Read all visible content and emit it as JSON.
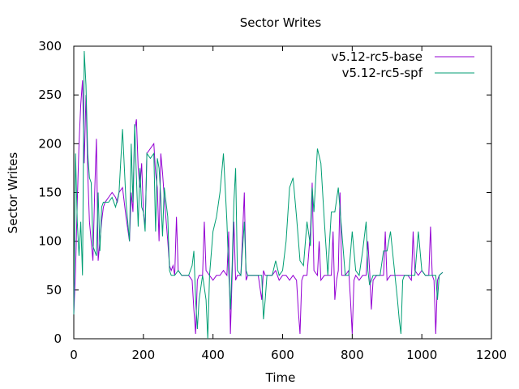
{
  "chart_data": {
    "type": "line",
    "title": "Sector Writes",
    "xlabel": "Time",
    "ylabel": "Sector Writes",
    "xlim": [
      0,
      1200
    ],
    "ylim": [
      0,
      300
    ],
    "x_ticks": [
      "0",
      "200",
      "400",
      "600",
      "800",
      "1000",
      "1200"
    ],
    "y_ticks": [
      "0",
      "50",
      "100",
      "150",
      "200",
      "250",
      "300"
    ],
    "grid": false,
    "legend_position": "top-right",
    "series": [
      {
        "name": "v5.12-rc5-base",
        "color": "#9400d3",
        "points": [
          [
            0,
            25
          ],
          [
            5,
            70
          ],
          [
            10,
            140
          ],
          [
            15,
            200
          ],
          [
            20,
            240
          ],
          [
            25,
            265
          ],
          [
            30,
            180
          ],
          [
            35,
            250
          ],
          [
            40,
            170
          ],
          [
            45,
            120
          ],
          [
            50,
            100
          ],
          [
            55,
            80
          ],
          [
            60,
            150
          ],
          [
            65,
            205
          ],
          [
            70,
            80
          ],
          [
            75,
            100
          ],
          [
            80,
            120
          ],
          [
            85,
            135
          ],
          [
            90,
            140
          ],
          [
            100,
            145
          ],
          [
            110,
            150
          ],
          [
            120,
            145
          ],
          [
            125,
            140
          ],
          [
            130,
            150
          ],
          [
            140,
            155
          ],
          [
            150,
            125
          ],
          [
            160,
            100
          ],
          [
            165,
            150
          ],
          [
            170,
            130
          ],
          [
            175,
            215
          ],
          [
            180,
            225
          ],
          [
            185,
            175
          ],
          [
            190,
            155
          ],
          [
            195,
            180
          ],
          [
            200,
            130
          ],
          [
            205,
            115
          ],
          [
            210,
            190
          ],
          [
            220,
            195
          ],
          [
            230,
            200
          ],
          [
            235,
            170
          ],
          [
            240,
            155
          ],
          [
            245,
            100
          ],
          [
            250,
            190
          ],
          [
            255,
            170
          ],
          [
            260,
            145
          ],
          [
            270,
            100
          ],
          [
            275,
            75
          ],
          [
            280,
            70
          ],
          [
            285,
            75
          ],
          [
            290,
            65
          ],
          [
            295,
            125
          ],
          [
            300,
            70
          ],
          [
            310,
            65
          ],
          [
            320,
            65
          ],
          [
            330,
            65
          ],
          [
            340,
            60
          ],
          [
            345,
            30
          ],
          [
            350,
            5
          ],
          [
            355,
            60
          ],
          [
            360,
            65
          ],
          [
            370,
            65
          ],
          [
            375,
            120
          ],
          [
            380,
            70
          ],
          [
            390,
            65
          ],
          [
            400,
            60
          ],
          [
            410,
            65
          ],
          [
            420,
            65
          ],
          [
            430,
            70
          ],
          [
            440,
            65
          ],
          [
            445,
            110
          ],
          [
            450,
            5
          ],
          [
            455,
            65
          ],
          [
            460,
            120
          ],
          [
            465,
            60
          ],
          [
            470,
            65
          ],
          [
            480,
            65
          ],
          [
            490,
            150
          ],
          [
            495,
            60
          ],
          [
            500,
            65
          ],
          [
            510,
            65
          ],
          [
            520,
            65
          ],
          [
            530,
            65
          ],
          [
            540,
            40
          ],
          [
            545,
            70
          ],
          [
            550,
            65
          ],
          [
            560,
            65
          ],
          [
            570,
            65
          ],
          [
            580,
            70
          ],
          [
            590,
            60
          ],
          [
            600,
            65
          ],
          [
            610,
            65
          ],
          [
            620,
            60
          ],
          [
            630,
            65
          ],
          [
            640,
            60
          ],
          [
            645,
            30
          ],
          [
            650,
            5
          ],
          [
            655,
            60
          ],
          [
            660,
            65
          ],
          [
            670,
            65
          ],
          [
            680,
            110
          ],
          [
            685,
            160
          ],
          [
            690,
            70
          ],
          [
            700,
            65
          ],
          [
            705,
            100
          ],
          [
            710,
            60
          ],
          [
            720,
            65
          ],
          [
            730,
            65
          ],
          [
            740,
            65
          ],
          [
            745,
            110
          ],
          [
            750,
            40
          ],
          [
            755,
            60
          ],
          [
            760,
            70
          ],
          [
            765,
            150
          ],
          [
            770,
            65
          ],
          [
            780,
            65
          ],
          [
            790,
            70
          ],
          [
            795,
            40
          ],
          [
            800,
            5
          ],
          [
            805,
            60
          ],
          [
            810,
            65
          ],
          [
            820,
            60
          ],
          [
            830,
            65
          ],
          [
            840,
            65
          ],
          [
            845,
            100
          ],
          [
            850,
            70
          ],
          [
            855,
            30
          ],
          [
            860,
            60
          ],
          [
            870,
            65
          ],
          [
            880,
            65
          ],
          [
            890,
            65
          ],
          [
            895,
            110
          ],
          [
            900,
            60
          ],
          [
            910,
            65
          ],
          [
            920,
            65
          ],
          [
            930,
            65
          ],
          [
            940,
            65
          ],
          [
            950,
            65
          ],
          [
            960,
            65
          ],
          [
            970,
            60
          ],
          [
            975,
            110
          ],
          [
            980,
            70
          ],
          [
            990,
            65
          ],
          [
            1000,
            70
          ],
          [
            1010,
            65
          ],
          [
            1020,
            65
          ],
          [
            1025,
            115
          ],
          [
            1030,
            65
          ],
          [
            1035,
            60
          ],
          [
            1040,
            5
          ],
          [
            1045,
            60
          ],
          [
            1050,
            65
          ],
          [
            1060,
            68
          ]
        ]
      },
      {
        "name": "v5.12-rc5-spf",
        "color": "#009e73",
        "points": [
          [
            0,
            25
          ],
          [
            5,
            190
          ],
          [
            10,
            120
          ],
          [
            15,
            85
          ],
          [
            20,
            120
          ],
          [
            25,
            65
          ],
          [
            30,
            295
          ],
          [
            35,
            260
          ],
          [
            40,
            190
          ],
          [
            45,
            165
          ],
          [
            50,
            160
          ],
          [
            55,
            95
          ],
          [
            60,
            90
          ],
          [
            65,
            85
          ],
          [
            70,
            150
          ],
          [
            75,
            90
          ],
          [
            80,
            135
          ],
          [
            85,
            140
          ],
          [
            90,
            140
          ],
          [
            100,
            140
          ],
          [
            110,
            145
          ],
          [
            120,
            135
          ],
          [
            130,
            150
          ],
          [
            140,
            215
          ],
          [
            150,
            140
          ],
          [
            160,
            100
          ],
          [
            165,
            200
          ],
          [
            170,
            140
          ],
          [
            175,
            220
          ],
          [
            180,
            165
          ],
          [
            185,
            115
          ],
          [
            190,
            175
          ],
          [
            195,
            135
          ],
          [
            200,
            130
          ],
          [
            205,
            110
          ],
          [
            210,
            190
          ],
          [
            220,
            185
          ],
          [
            230,
            190
          ],
          [
            235,
            110
          ],
          [
            240,
            185
          ],
          [
            245,
            175
          ],
          [
            250,
            145
          ],
          [
            255,
            105
          ],
          [
            260,
            155
          ],
          [
            270,
            125
          ],
          [
            275,
            70
          ],
          [
            280,
            65
          ],
          [
            290,
            65
          ],
          [
            300,
            70
          ],
          [
            310,
            65
          ],
          [
            320,
            65
          ],
          [
            330,
            65
          ],
          [
            340,
            75
          ],
          [
            345,
            90
          ],
          [
            350,
            40
          ],
          [
            355,
            10
          ],
          [
            360,
            40
          ],
          [
            370,
            65
          ],
          [
            380,
            40
          ],
          [
            385,
            0
          ],
          [
            390,
            65
          ],
          [
            400,
            110
          ],
          [
            410,
            125
          ],
          [
            420,
            150
          ],
          [
            430,
            190
          ],
          [
            440,
            120
          ],
          [
            445,
            70
          ],
          [
            450,
            30
          ],
          [
            455,
            75
          ],
          [
            460,
            140
          ],
          [
            465,
            175
          ],
          [
            470,
            70
          ],
          [
            480,
            65
          ],
          [
            490,
            120
          ],
          [
            495,
            70
          ],
          [
            500,
            65
          ],
          [
            510,
            65
          ],
          [
            520,
            65
          ],
          [
            530,
            65
          ],
          [
            540,
            65
          ],
          [
            545,
            20
          ],
          [
            550,
            40
          ],
          [
            555,
            65
          ],
          [
            560,
            65
          ],
          [
            570,
            65
          ],
          [
            580,
            80
          ],
          [
            590,
            65
          ],
          [
            600,
            70
          ],
          [
            610,
            100
          ],
          [
            620,
            155
          ],
          [
            630,
            165
          ],
          [
            640,
            125
          ],
          [
            650,
            80
          ],
          [
            660,
            75
          ],
          [
            670,
            120
          ],
          [
            680,
            95
          ],
          [
            685,
            155
          ],
          [
            690,
            130
          ],
          [
            700,
            195
          ],
          [
            710,
            180
          ],
          [
            720,
            120
          ],
          [
            730,
            65
          ],
          [
            735,
            100
          ],
          [
            740,
            130
          ],
          [
            750,
            130
          ],
          [
            760,
            155
          ],
          [
            770,
            110
          ],
          [
            780,
            65
          ],
          [
            790,
            65
          ],
          [
            800,
            110
          ],
          [
            810,
            70
          ],
          [
            820,
            65
          ],
          [
            830,
            90
          ],
          [
            840,
            120
          ],
          [
            845,
            70
          ],
          [
            850,
            55
          ],
          [
            860,
            65
          ],
          [
            870,
            65
          ],
          [
            880,
            65
          ],
          [
            890,
            90
          ],
          [
            900,
            90
          ],
          [
            910,
            110
          ],
          [
            920,
            75
          ],
          [
            930,
            40
          ],
          [
            935,
            20
          ],
          [
            940,
            5
          ],
          [
            945,
            60
          ],
          [
            950,
            65
          ],
          [
            960,
            65
          ],
          [
            970,
            65
          ],
          [
            980,
            65
          ],
          [
            990,
            110
          ],
          [
            1000,
            70
          ],
          [
            1010,
            65
          ],
          [
            1020,
            65
          ],
          [
            1030,
            65
          ],
          [
            1040,
            65
          ],
          [
            1045,
            40
          ],
          [
            1050,
            65
          ],
          [
            1060,
            68
          ]
        ]
      }
    ]
  }
}
